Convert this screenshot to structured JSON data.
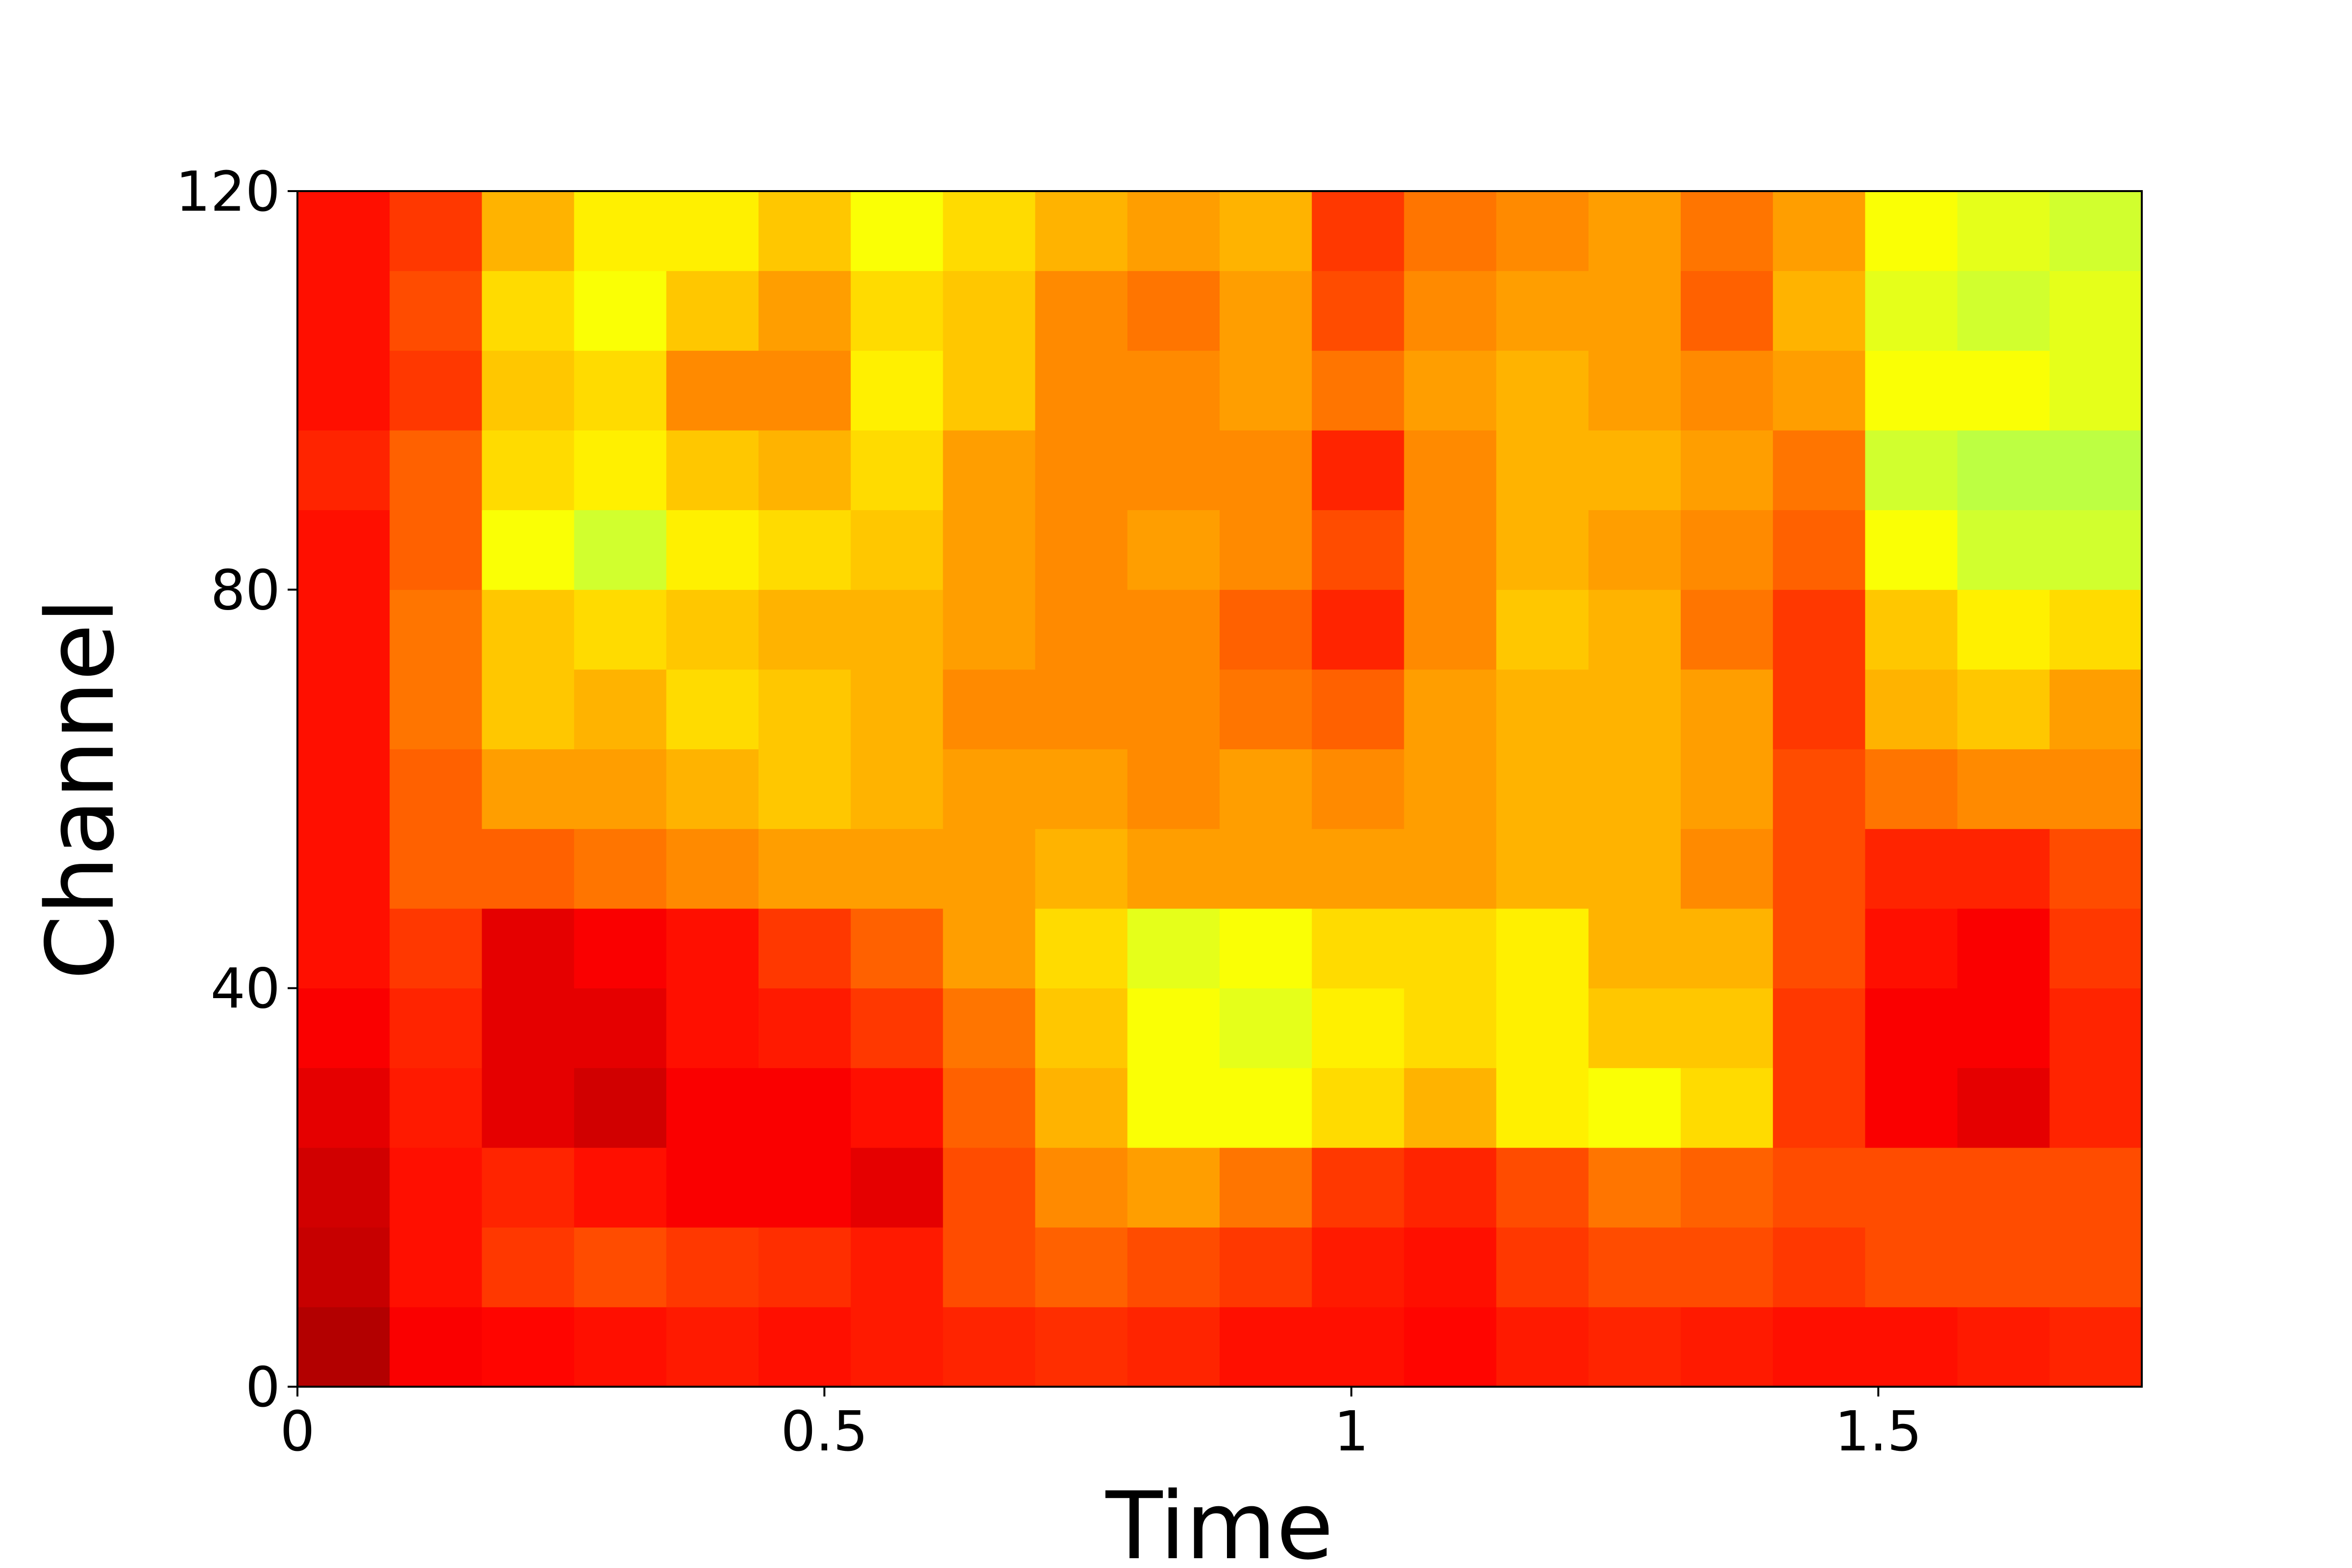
{
  "chart_data": {
    "type": "heatmap",
    "xlabel": "Time",
    "ylabel": "Channel",
    "xlim": [
      0,
      1.75
    ],
    "ylim": [
      0,
      120
    ],
    "xticks": [
      0,
      0.5,
      1,
      1.5
    ],
    "yticks": [
      0,
      40,
      80,
      120
    ],
    "colormap": "jet",
    "zlim": [
      0,
      1
    ],
    "xbins": [
      0,
      0.0875,
      0.175,
      0.2625,
      0.35,
      0.4375,
      0.525,
      0.6125,
      0.7,
      0.7875,
      0.875,
      0.9625,
      1.05,
      1.1375,
      1.225,
      1.3125,
      1.4,
      1.4875,
      1.575,
      1.6625,
      1.75
    ],
    "ybins": [
      0,
      8,
      16,
      24,
      32,
      40,
      48,
      56,
      64,
      72,
      80,
      88,
      96,
      104,
      112,
      120
    ],
    "values": [
      [
        0.95,
        0.88,
        0.87,
        0.86,
        0.85,
        0.86,
        0.85,
        0.84,
        0.83,
        0.84,
        0.86,
        0.86,
        0.87,
        0.85,
        0.84,
        0.85,
        0.86,
        0.86,
        0.85,
        0.84
      ],
      [
        0.93,
        0.86,
        0.82,
        0.8,
        0.82,
        0.83,
        0.85,
        0.8,
        0.78,
        0.8,
        0.82,
        0.85,
        0.86,
        0.82,
        0.8,
        0.8,
        0.82,
        0.8,
        0.8,
        0.8
      ],
      [
        0.92,
        0.86,
        0.84,
        0.86,
        0.88,
        0.88,
        0.9,
        0.8,
        0.74,
        0.72,
        0.76,
        0.82,
        0.84,
        0.8,
        0.76,
        0.78,
        0.8,
        0.8,
        0.8,
        0.8
      ],
      [
        0.9,
        0.85,
        0.9,
        0.92,
        0.88,
        0.88,
        0.86,
        0.78,
        0.7,
        0.62,
        0.62,
        0.66,
        0.7,
        0.64,
        0.62,
        0.66,
        0.82,
        0.88,
        0.9,
        0.84
      ],
      [
        0.88,
        0.84,
        0.9,
        0.9,
        0.86,
        0.85,
        0.82,
        0.76,
        0.68,
        0.62,
        0.6,
        0.64,
        0.66,
        0.64,
        0.68,
        0.68,
        0.82,
        0.88,
        0.88,
        0.84
      ],
      [
        0.86,
        0.82,
        0.9,
        0.88,
        0.86,
        0.82,
        0.78,
        0.72,
        0.66,
        0.6,
        0.62,
        0.66,
        0.66,
        0.64,
        0.7,
        0.7,
        0.8,
        0.86,
        0.88,
        0.82
      ],
      [
        0.86,
        0.78,
        0.78,
        0.76,
        0.74,
        0.72,
        0.72,
        0.72,
        0.7,
        0.72,
        0.72,
        0.72,
        0.72,
        0.7,
        0.7,
        0.74,
        0.8,
        0.84,
        0.84,
        0.8
      ],
      [
        0.86,
        0.78,
        0.72,
        0.72,
        0.7,
        0.68,
        0.7,
        0.72,
        0.72,
        0.74,
        0.72,
        0.74,
        0.72,
        0.7,
        0.7,
        0.72,
        0.8,
        0.76,
        0.74,
        0.74
      ],
      [
        0.86,
        0.76,
        0.68,
        0.7,
        0.66,
        0.68,
        0.7,
        0.74,
        0.74,
        0.74,
        0.76,
        0.78,
        0.72,
        0.7,
        0.7,
        0.72,
        0.82,
        0.7,
        0.68,
        0.72
      ],
      [
        0.86,
        0.76,
        0.68,
        0.66,
        0.68,
        0.7,
        0.7,
        0.72,
        0.74,
        0.74,
        0.78,
        0.84,
        0.74,
        0.68,
        0.7,
        0.76,
        0.82,
        0.68,
        0.64,
        0.66
      ],
      [
        0.86,
        0.78,
        0.62,
        0.58,
        0.64,
        0.66,
        0.68,
        0.72,
        0.74,
        0.72,
        0.74,
        0.8,
        0.74,
        0.7,
        0.72,
        0.74,
        0.78,
        0.62,
        0.58,
        0.58
      ],
      [
        0.84,
        0.78,
        0.66,
        0.64,
        0.68,
        0.7,
        0.66,
        0.72,
        0.74,
        0.74,
        0.74,
        0.84,
        0.74,
        0.7,
        0.7,
        0.72,
        0.76,
        0.58,
        0.56,
        0.56
      ],
      [
        0.86,
        0.82,
        0.68,
        0.66,
        0.74,
        0.74,
        0.64,
        0.68,
        0.74,
        0.74,
        0.72,
        0.76,
        0.72,
        0.7,
        0.72,
        0.74,
        0.72,
        0.62,
        0.62,
        0.6
      ],
      [
        0.86,
        0.8,
        0.66,
        0.62,
        0.68,
        0.72,
        0.66,
        0.68,
        0.74,
        0.76,
        0.72,
        0.8,
        0.74,
        0.72,
        0.72,
        0.78,
        0.7,
        0.6,
        0.58,
        0.6
      ],
      [
        0.86,
        0.82,
        0.7,
        0.64,
        0.64,
        0.68,
        0.62,
        0.66,
        0.7,
        0.72,
        0.7,
        0.82,
        0.76,
        0.74,
        0.72,
        0.76,
        0.72,
        0.62,
        0.6,
        0.58
      ]
    ]
  }
}
